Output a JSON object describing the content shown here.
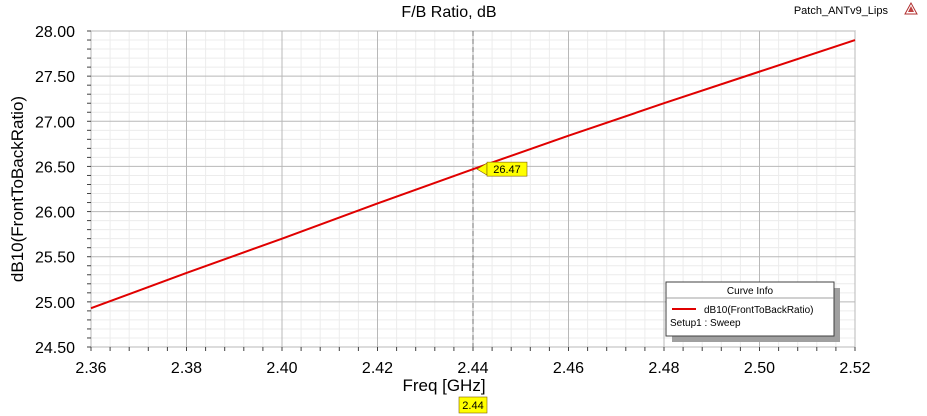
{
  "header": {
    "title": "F/B Ratio, dB",
    "project_name": "Patch_ANTv9_Lips",
    "logo_icon": "ansys-logo-icon"
  },
  "chart_data": {
    "type": "line",
    "title": "F/B Ratio, dB",
    "xlabel": "Freq [GHz]",
    "ylabel": "dB10(FrontToBackRatio)",
    "xlim": [
      2.36,
      2.52
    ],
    "ylim": [
      24.5,
      28.0
    ],
    "xticks": [
      "2.36",
      "2.38",
      "2.40",
      "2.42",
      "2.44",
      "2.46",
      "2.48",
      "2.50",
      "2.52"
    ],
    "yticks": [
      "24.50",
      "25.00",
      "25.50",
      "26.00",
      "26.50",
      "27.00",
      "27.50",
      "28.00"
    ],
    "grid": true,
    "series": [
      {
        "name": "dB10(FrontToBackRatio)",
        "color": "#e00000",
        "x": [
          2.36,
          2.38,
          2.4,
          2.42,
          2.44,
          2.46,
          2.48,
          2.5,
          2.52
        ],
        "y": [
          24.93,
          25.32,
          25.7,
          26.09,
          26.47,
          26.84,
          27.2,
          27.55,
          27.9
        ]
      }
    ],
    "marker": {
      "x": 2.44,
      "y": 26.47,
      "x_label": "2.44",
      "y_label": "26.47",
      "color": "#ffff00"
    },
    "legend": {
      "title": "Curve Info",
      "placement": "bottom-right",
      "entries": [
        "dB10(FrontToBackRatio)"
      ],
      "subtitle": "Setup1 : Sweep"
    }
  }
}
